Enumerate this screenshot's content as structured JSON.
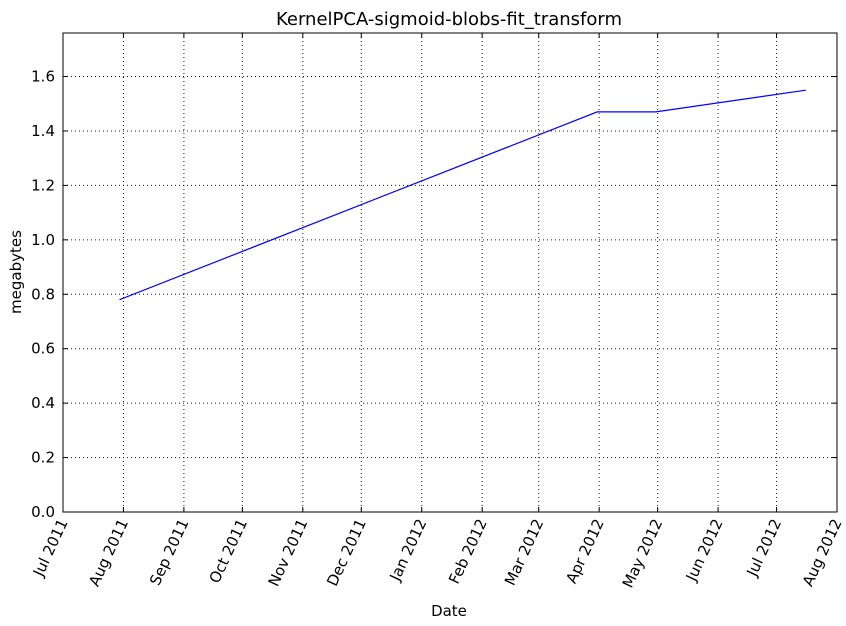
{
  "chart_data": {
    "type": "line",
    "title": "KernelPCA-sigmoid-blobs-fit_transform",
    "xlabel": "Date",
    "ylabel": "megabytes",
    "x_ticks": [
      "Jul 2011",
      "Aug 2011",
      "Sep 2011",
      "Oct 2011",
      "Nov 2011",
      "Dec 2011",
      "Jan 2012",
      "Feb 2012",
      "Mar 2012",
      "Apr 2012",
      "May 2012",
      "Jun 2012",
      "Jul 2012",
      "Aug 2012"
    ],
    "xlim": [
      "2011-07-01",
      "2012-08-01"
    ],
    "ylim": [
      0,
      1.76
    ],
    "y_ticks": [
      "0.0",
      "0.2",
      "0.4",
      "0.6",
      "0.8",
      "1.0",
      "1.2",
      "1.4",
      "1.6"
    ],
    "grid": true,
    "series": [
      {
        "color": "#0000ff",
        "points": [
          {
            "x": "2011-07-30",
            "y": 0.78
          },
          {
            "x": "2012-03-31",
            "y": 1.47
          },
          {
            "x": "2012-04-30",
            "y": 1.47
          },
          {
            "x": "2012-07-16",
            "y": 1.55
          }
        ]
      }
    ]
  }
}
